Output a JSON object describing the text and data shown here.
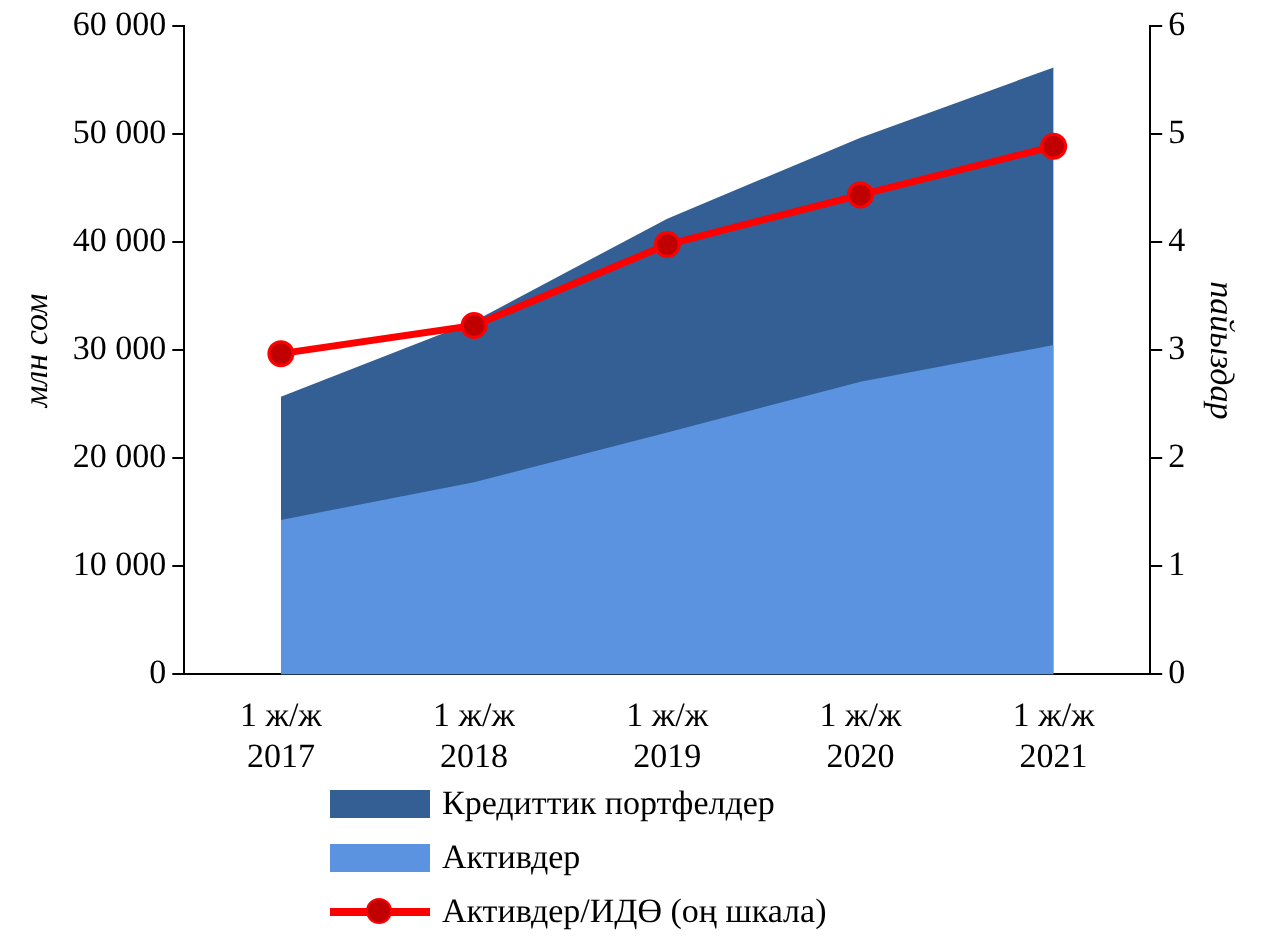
{
  "chart_data": {
    "type": "area",
    "ylabel": "млн сом",
    "y2label": "пайыздар",
    "categories": [
      "1 ж/ж\n2017",
      "1 ж/ж\n2018",
      "1 ж/ж\n2019",
      "1 ж/ж\n2020",
      "1 ж/ж\n2021"
    ],
    "series": [
      {
        "name": "Кредиттик портфелдер",
        "color": "#335f94",
        "values": [
          25700,
          32700,
          42200,
          49700,
          56200
        ]
      },
      {
        "name": "Активдер",
        "color": "#5b93e0",
        "values": [
          14300,
          17800,
          22400,
          27100,
          30500
        ]
      },
      {
        "name": "Активдер/ИДӨ (оң шкала)",
        "type": "line",
        "axis": "y2",
        "color": "#ff0000",
        "marker": "circle",
        "values": [
          2.97,
          3.23,
          3.98,
          4.44,
          4.89
        ]
      }
    ],
    "ylim": [
      0,
      60000
    ],
    "yticks": [
      {
        "value": 0,
        "label": "0"
      },
      {
        "value": 10000,
        "label": "10 000"
      },
      {
        "value": 20000,
        "label": "20 000"
      },
      {
        "value": 30000,
        "label": "30 000"
      },
      {
        "value": 40000,
        "label": "40 000"
      },
      {
        "value": 50000,
        "label": "50 000"
      },
      {
        "value": 60000,
        "label": "60 000"
      }
    ],
    "y2lim": [
      0,
      6
    ],
    "y2ticks": [
      0,
      1,
      2,
      3,
      4,
      5,
      6
    ],
    "grid": false,
    "legend": "bottom"
  }
}
